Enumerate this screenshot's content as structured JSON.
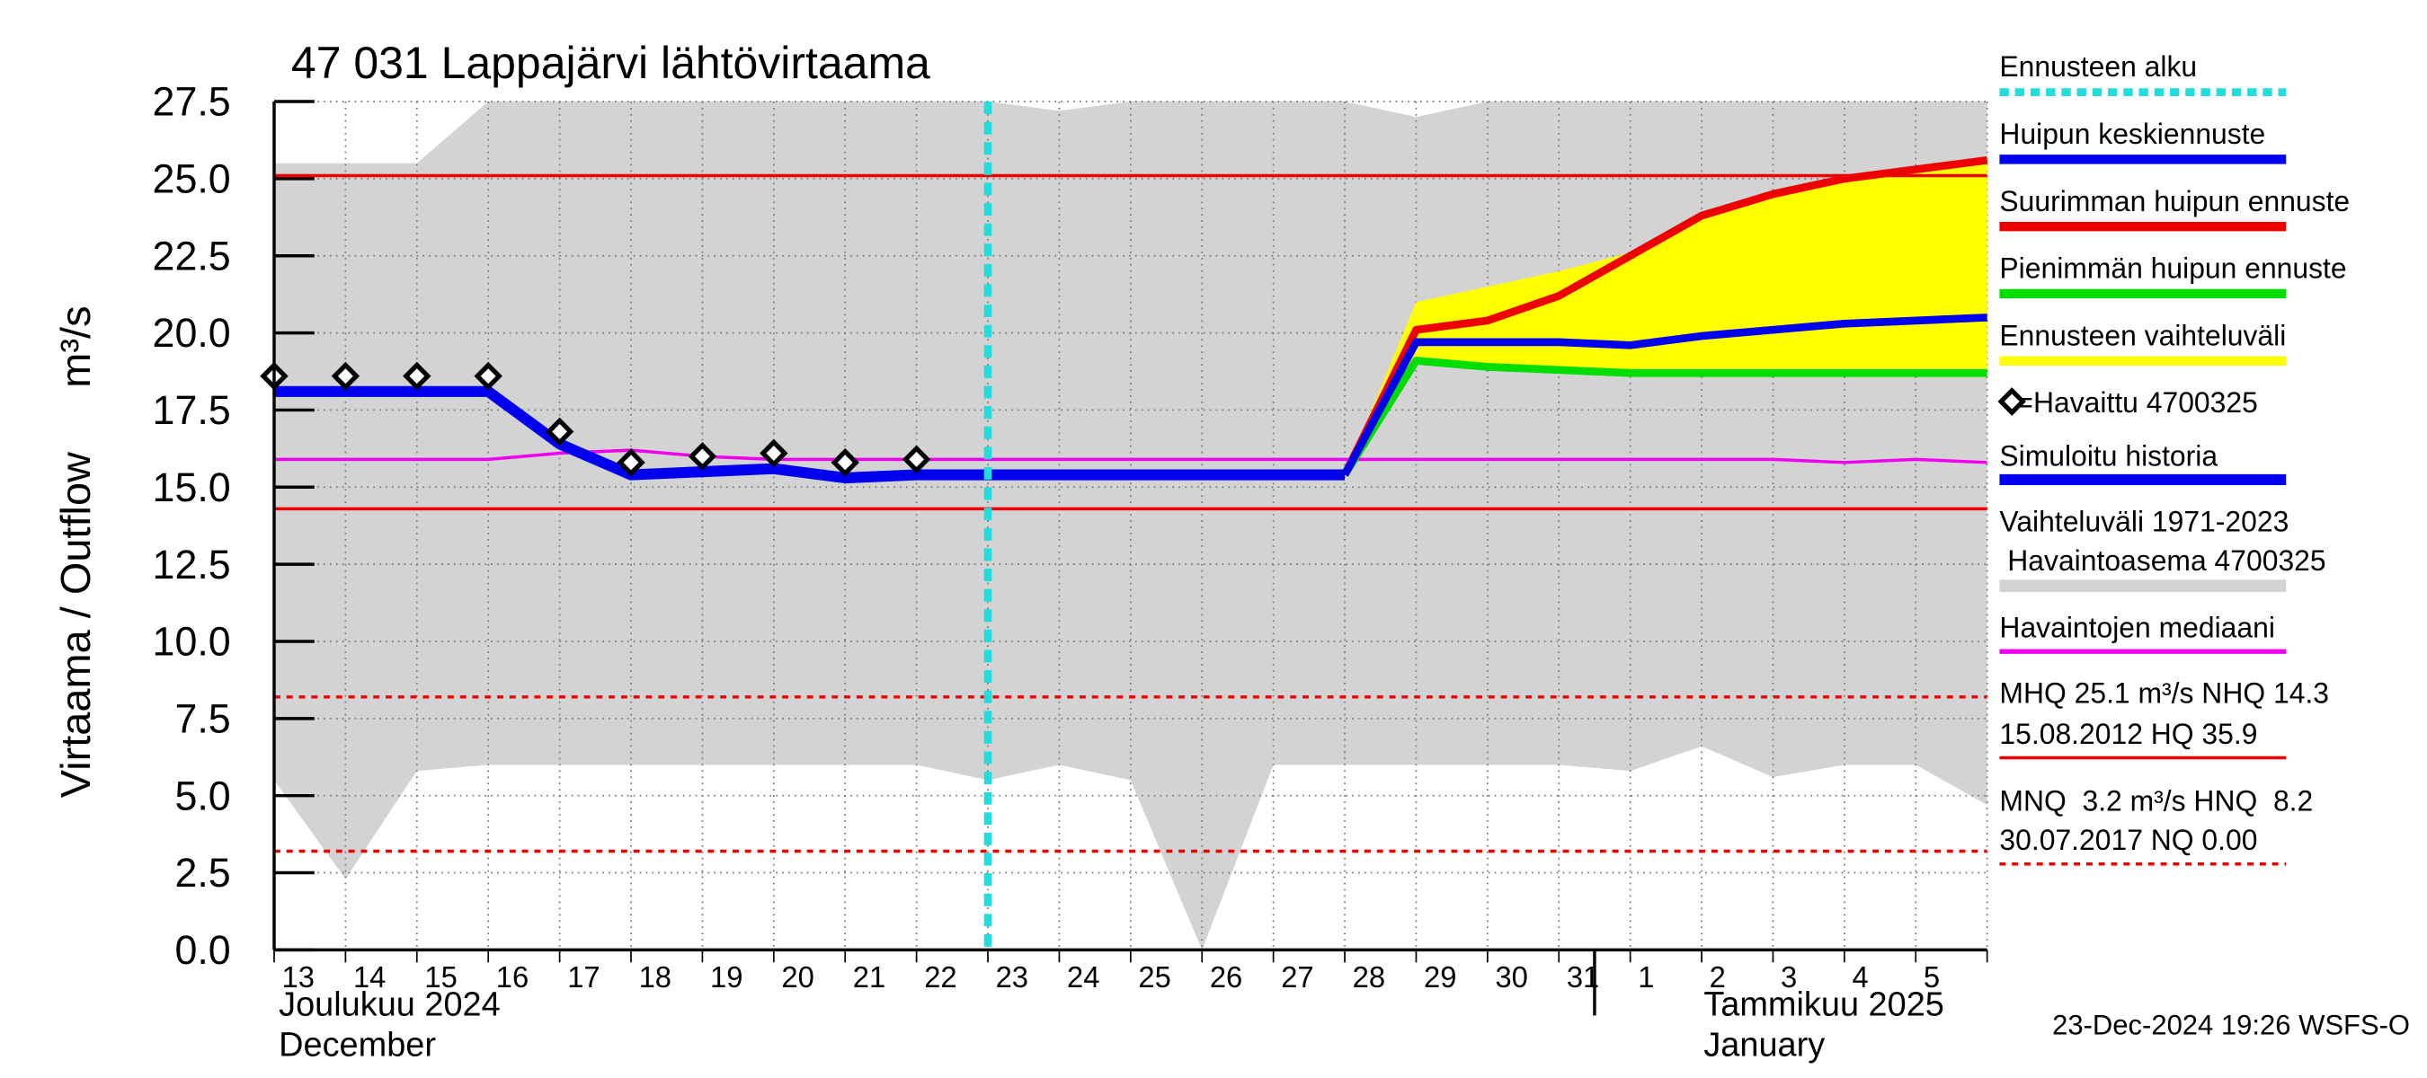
{
  "chart_data": {
    "type": "line",
    "title": "47 031 Lappajärvi lähtövirtaama",
    "y_label": "Virtaama / Outflow",
    "y_unit": "m³/s",
    "x_month_labels": [
      {
        "fi": "Joulukuu  2024",
        "en": "December"
      },
      {
        "fi": "Tammikuu  2025",
        "en": "January"
      }
    ],
    "footer": "23-Dec-2024 19:26 WSFS-O",
    "categories": [
      "13",
      "14",
      "15",
      "16",
      "17",
      "18",
      "19",
      "20",
      "21",
      "22",
      "23",
      "24",
      "25",
      "26",
      "27",
      "28",
      "29",
      "30",
      "31",
      "1",
      "2",
      "3",
      "4",
      "5",
      null
    ],
    "ylim": [
      0,
      27.5
    ],
    "yticks": [
      {
        "value": 0,
        "label": "0.0"
      },
      2.5,
      {
        "value": 5,
        "label": "5.0"
      },
      7.5,
      {
        "value": 10,
        "label": "10.0"
      },
      12.5,
      {
        "value": 15,
        "label": "15.0"
      },
      17.5,
      {
        "value": 20,
        "label": "20.0"
      },
      22.5,
      {
        "value": 25,
        "label": "25.0"
      },
      27.5
    ],
    "grid": true,
    "forecast_start": {
      "name": "Ennusteen alku",
      "color": "#22dddd",
      "at": "23"
    },
    "series": [
      {
        "name": "Simuloitu historia",
        "kind": "line",
        "color": "#0000ee",
        "values": [
          18.1,
          18.1,
          18.1,
          18.1,
          16.4,
          15.4,
          15.5,
          15.6,
          15.3,
          15.4,
          15.4,
          15.4,
          15.4,
          15.4,
          15.4,
          15.4,
          null,
          null,
          null,
          null,
          null,
          null,
          null,
          null,
          null
        ]
      },
      {
        "name": "Huipun keskiennuste",
        "kind": "line",
        "color": "#0000ee",
        "values": [
          null,
          null,
          null,
          null,
          null,
          null,
          null,
          null,
          null,
          null,
          null,
          null,
          null,
          null,
          null,
          15.4,
          19.7,
          19.7,
          19.7,
          19.6,
          19.9,
          20.1,
          20.3,
          20.4,
          20.5
        ]
      },
      {
        "name": "Suurimman huipun ennuste",
        "kind": "line",
        "color": "#ee0000",
        "values": [
          null,
          null,
          null,
          null,
          null,
          null,
          null,
          null,
          null,
          null,
          null,
          null,
          null,
          null,
          null,
          15.4,
          20.1,
          20.4,
          21.2,
          22.5,
          23.8,
          24.5,
          25.0,
          25.3,
          25.6
        ]
      },
      {
        "name": "Pienimmän huipun ennuste",
        "kind": "line",
        "color": "#00dd00",
        "values": [
          null,
          null,
          null,
          null,
          null,
          null,
          null,
          null,
          null,
          null,
          null,
          null,
          null,
          null,
          null,
          15.4,
          19.1,
          18.9,
          18.8,
          18.7,
          18.7,
          18.7,
          18.7,
          18.7,
          18.7
        ]
      },
      {
        "name": "Ennusteen vaihteluväli",
        "kind": "band",
        "color": "#ffff00",
        "high": [
          null,
          null,
          null,
          null,
          null,
          null,
          null,
          null,
          null,
          null,
          null,
          null,
          null,
          null,
          null,
          15.4,
          21.0,
          21.5,
          22.0,
          22.6,
          23.8,
          24.6,
          25.1,
          25.4,
          25.7
        ],
        "low": [
          null,
          null,
          null,
          null,
          null,
          null,
          null,
          null,
          null,
          null,
          null,
          null,
          null,
          null,
          null,
          15.4,
          19.1,
          18.9,
          18.8,
          18.7,
          18.7,
          18.7,
          18.7,
          18.7,
          18.7
        ]
      },
      {
        "name": "=Havaittu 4700325",
        "kind": "markers",
        "color": "#000000",
        "values": [
          18.6,
          18.6,
          18.6,
          18.6,
          16.8,
          15.8,
          16.0,
          16.1,
          15.8,
          15.9,
          null,
          null,
          null,
          null,
          null,
          null,
          null,
          null,
          null,
          null,
          null,
          null,
          null,
          null,
          null
        ]
      },
      {
        "name": "Vaihteluväli 1971-2023",
        "name2": " Havaintoasema 4700325",
        "kind": "band",
        "color": "#d3d3d3",
        "high": [
          25.5,
          25.5,
          25.5,
          27.5,
          27.5,
          27.5,
          27.5,
          27.5,
          27.5,
          27.5,
          27.5,
          27.2,
          27.5,
          27.5,
          27.5,
          27.5,
          27.0,
          27.5,
          27.5,
          27.5,
          27.5,
          27.5,
          27.5,
          27.5,
          27.5
        ],
        "low": [
          5.5,
          2.3,
          5.8,
          6.0,
          6.0,
          6.0,
          6.0,
          6.0,
          6.0,
          6.0,
          5.5,
          6.0,
          5.5,
          0.0,
          6.0,
          6.0,
          6.0,
          6.0,
          6.0,
          5.8,
          6.6,
          5.6,
          6.0,
          6.0,
          4.7
        ]
      },
      {
        "name": "Havaintojen mediaani",
        "kind": "line",
        "color": "#ee00ee",
        "values": [
          15.9,
          15.9,
          15.9,
          15.9,
          16.1,
          16.2,
          16.0,
          15.9,
          15.9,
          15.9,
          15.9,
          15.9,
          15.9,
          15.9,
          15.9,
          15.9,
          15.9,
          15.9,
          15.9,
          15.9,
          15.9,
          15.9,
          15.8,
          15.9,
          15.8
        ]
      }
    ],
    "reference_lines": [
      {
        "label_lines": [
          "MHQ 25.1 m³/s NHQ 14.3",
          "15.08.2012 HQ 35.9"
        ],
        "values": [
          25.1,
          14.3
        ],
        "color": "#ee0000",
        "dashed": false
      },
      {
        "label_lines": [
          "MNQ  3.2 m³/s HNQ  8.2",
          "30.07.2017 NQ 0.00"
        ],
        "values": [
          8.2,
          3.2
        ],
        "color": "#ee0000",
        "dashed": true
      }
    ]
  }
}
